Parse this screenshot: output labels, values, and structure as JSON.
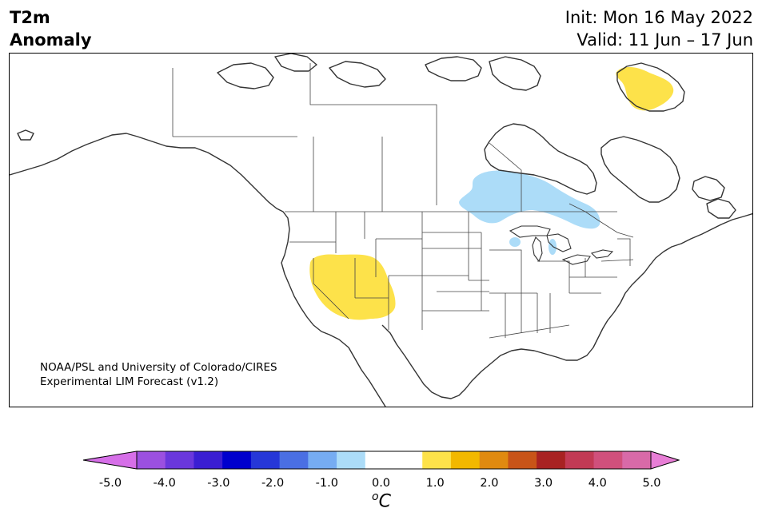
{
  "title": {
    "line1": "T2m",
    "line2": "Anomaly"
  },
  "init": {
    "line1": "Init: Mon 16 May 2022",
    "line2": "Valid: 11 Jun – 17 Jun"
  },
  "credit": {
    "line1": "NOAA/PSL and University of Colorado/CIRES",
    "line2": "Experimental LIM Forecast (v1.2)"
  },
  "colorbar": {
    "units_base": "C",
    "units_sup": "o",
    "colors": [
      "#d66fe8",
      "#9b50e0",
      "#6a37dc",
      "#3a1ed2",
      "#0000cd",
      "#2637d8",
      "#4a6fe3",
      "#76acf2",
      "#acdcf8",
      "#ffffff",
      "#ffffff",
      "#fde24a",
      "#f2b800",
      "#e08a10",
      "#c85418",
      "#a82222",
      "#c23a55",
      "#d0507c",
      "#d86aa8",
      "#e87ed6"
    ],
    "ticks": [
      "-5.0",
      "-4.0",
      "-3.0",
      "-2.0",
      "-1.0",
      "0.0",
      "1.0",
      "2.0",
      "3.0",
      "4.0",
      "5.0"
    ]
  },
  "map_anomalies": {
    "colors": {
      "warm": "#fde24a",
      "cool": "#acdcf8"
    },
    "regions": [
      {
        "name": "Southwest US",
        "category": "warm",
        "range": "0.5 to 1.0"
      },
      {
        "name": "Baffin Island",
        "category": "warm",
        "range": "0.5 to 1.0"
      },
      {
        "name": "Hudson Bay / Ontario",
        "category": "cool",
        "range": "-1.0 to -0.5"
      }
    ]
  }
}
